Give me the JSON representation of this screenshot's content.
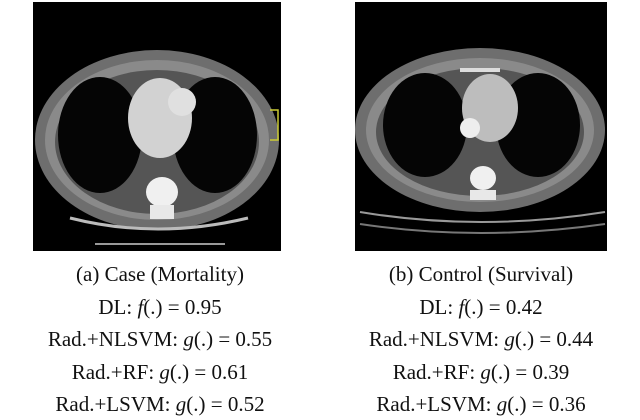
{
  "panels": [
    {
      "caption": "(a) Case (Mortality)",
      "lines": [
        {
          "label": "DL:",
          "fn": "f",
          "tail": "(.) = 0.95"
        },
        {
          "label": "Rad.+NLSVM:",
          "fn": "g",
          "tail": "(.) = 0.55"
        },
        {
          "label": "Rad.+RF:",
          "fn": "g",
          "tail": "(.) = 0.61"
        },
        {
          "label": "Rad.+LSVM:",
          "fn": "g",
          "tail": "(.) = 0.52"
        }
      ]
    },
    {
      "caption": "(b) Control (Survival)",
      "lines": [
        {
          "label": "DL:",
          "fn": "f",
          "tail": "(.) = 0.42"
        },
        {
          "label": "Rad.+NLSVM:",
          "fn": "g",
          "tail": "(.) = 0.44"
        },
        {
          "label": "Rad.+RF:",
          "fn": "g",
          "tail": "(.) = 0.39"
        },
        {
          "label": "Rad.+LSVM:",
          "fn": "g",
          "tail": "(.) = 0.36"
        }
      ]
    }
  ]
}
